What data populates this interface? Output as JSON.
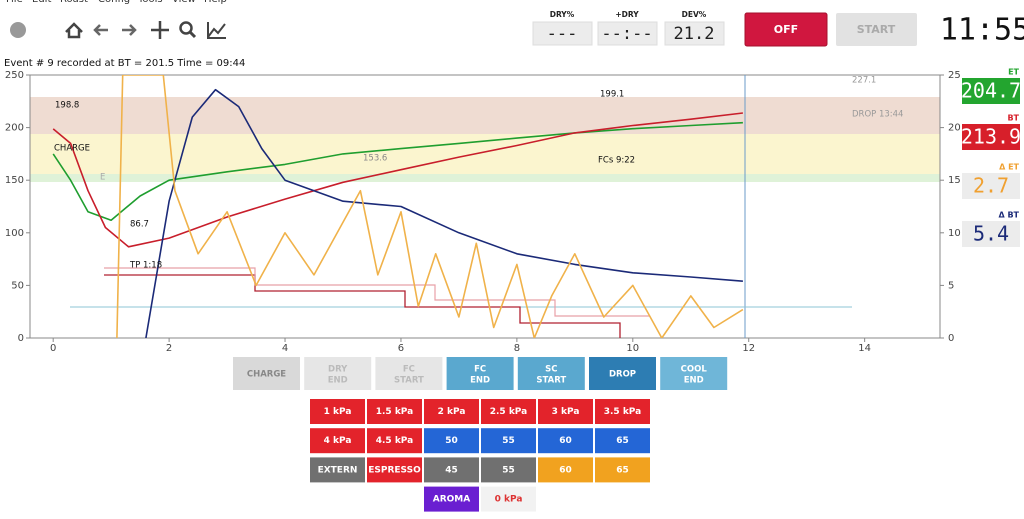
{
  "menu": [
    "File",
    "Edit",
    "Roast",
    "Config",
    "Tools",
    "View",
    "Help"
  ],
  "lcds": [
    {
      "label": "DRY%",
      "value": "---"
    },
    {
      "label": "+DRY",
      "value": "--:--"
    },
    {
      "label": "DEV%",
      "value": "21.2"
    }
  ],
  "buttons": {
    "off": "OFF",
    "start": "START"
  },
  "clock": "11:55",
  "status": "Event # 9 recorded at BT = 201.5  Time = 09:44",
  "readouts": [
    {
      "label": "ET",
      "value": "204.7"
    },
    {
      "label": "BT",
      "value": "213.9"
    },
    {
      "label": "Δ ET",
      "value": "2.7"
    },
    {
      "label": "Δ BT",
      "value": "5.4"
    }
  ],
  "chart_data": {
    "type": "line",
    "xlim": [
      -0.4,
      15.3
    ],
    "ylim": [
      0,
      250
    ],
    "y2lim": [
      0,
      25
    ],
    "xticks": [
      0,
      2,
      4,
      6,
      8,
      10,
      12,
      14
    ],
    "yticks": [
      0,
      50,
      100,
      150,
      200,
      250
    ],
    "y2ticks": [
      0,
      5,
      10,
      15,
      20,
      25
    ],
    "series": [
      {
        "color": "#1f9e2f",
        "x": [
          0,
          0.3,
          0.6,
          1,
          1.5,
          2,
          3,
          4,
          5,
          6,
          7,
          8,
          9,
          10,
          11,
          11.9
        ],
        "values": [
          175,
          150,
          120,
          112,
          135,
          150,
          158,
          165,
          175,
          180,
          185,
          190,
          195,
          199,
          202,
          204.7
        ]
      },
      {
        "color": "#c81e2b",
        "x": [
          0,
          0.3,
          0.6,
          0.9,
          1.3,
          2,
          3,
          4,
          5,
          6,
          7,
          8,
          9,
          10,
          11,
          11.9
        ],
        "values": [
          198.8,
          185,
          140,
          105,
          86.7,
          95,
          115,
          132,
          148,
          160,
          172,
          183,
          195,
          202,
          208,
          213.9
        ]
      },
      {
        "color": "#1b2a78",
        "axis": "y2",
        "x": [
          1.6,
          2,
          2.4,
          2.8,
          3.2,
          3.6,
          4,
          5,
          6,
          7,
          8,
          9,
          10,
          11,
          11.9
        ],
        "values": [
          0,
          13,
          21,
          23.6,
          22,
          18,
          15,
          13,
          12.5,
          10,
          8,
          7,
          6.2,
          5.8,
          5.4
        ]
      },
      {
        "color": "#f0b24a",
        "axis": "y2",
        "x": [
          1.1,
          1.2,
          1.9,
          2.1,
          2.5,
          3,
          3.5,
          4,
          4.5,
          5,
          5.3,
          5.6,
          6,
          6.3,
          6.6,
          7,
          7.3,
          7.6,
          8,
          8.3,
          8.6,
          9,
          9.5,
          10,
          10.5,
          11,
          11.4,
          11.9
        ],
        "values": [
          0,
          25,
          25,
          14,
          8,
          12,
          5,
          10,
          6,
          11,
          14,
          6,
          12,
          3,
          8,
          2,
          9,
          1,
          7,
          0,
          4,
          8,
          2,
          5,
          0,
          4,
          1,
          2.7
        ]
      }
    ],
    "annotations": [
      "198.8",
      "CHARGE",
      "86.7",
      "TP 1:18",
      "153.6",
      "199.1",
      "FCs 9:22",
      "227.1",
      "DROP 13:44",
      "E"
    ]
  },
  "event_buttons": [
    "CHARGE",
    "DRY\nEND",
    "FC\nSTART",
    "FC\nEND",
    "SC\nSTART",
    "DROP",
    "COOL\nEND"
  ],
  "control_buttons": [
    [
      "1 kPa",
      "1.5 kPa",
      "2 kPa",
      "2.5 kPa",
      "3 kPa",
      "3.5 kPa"
    ],
    [
      "4 kPa",
      "4.5 kPa",
      "50",
      "55",
      "60",
      "65"
    ],
    [
      "EXTERN",
      "ESPRESSO",
      "45",
      "55",
      "60",
      "65"
    ],
    [
      "AROMA",
      "0 kPa"
    ]
  ]
}
